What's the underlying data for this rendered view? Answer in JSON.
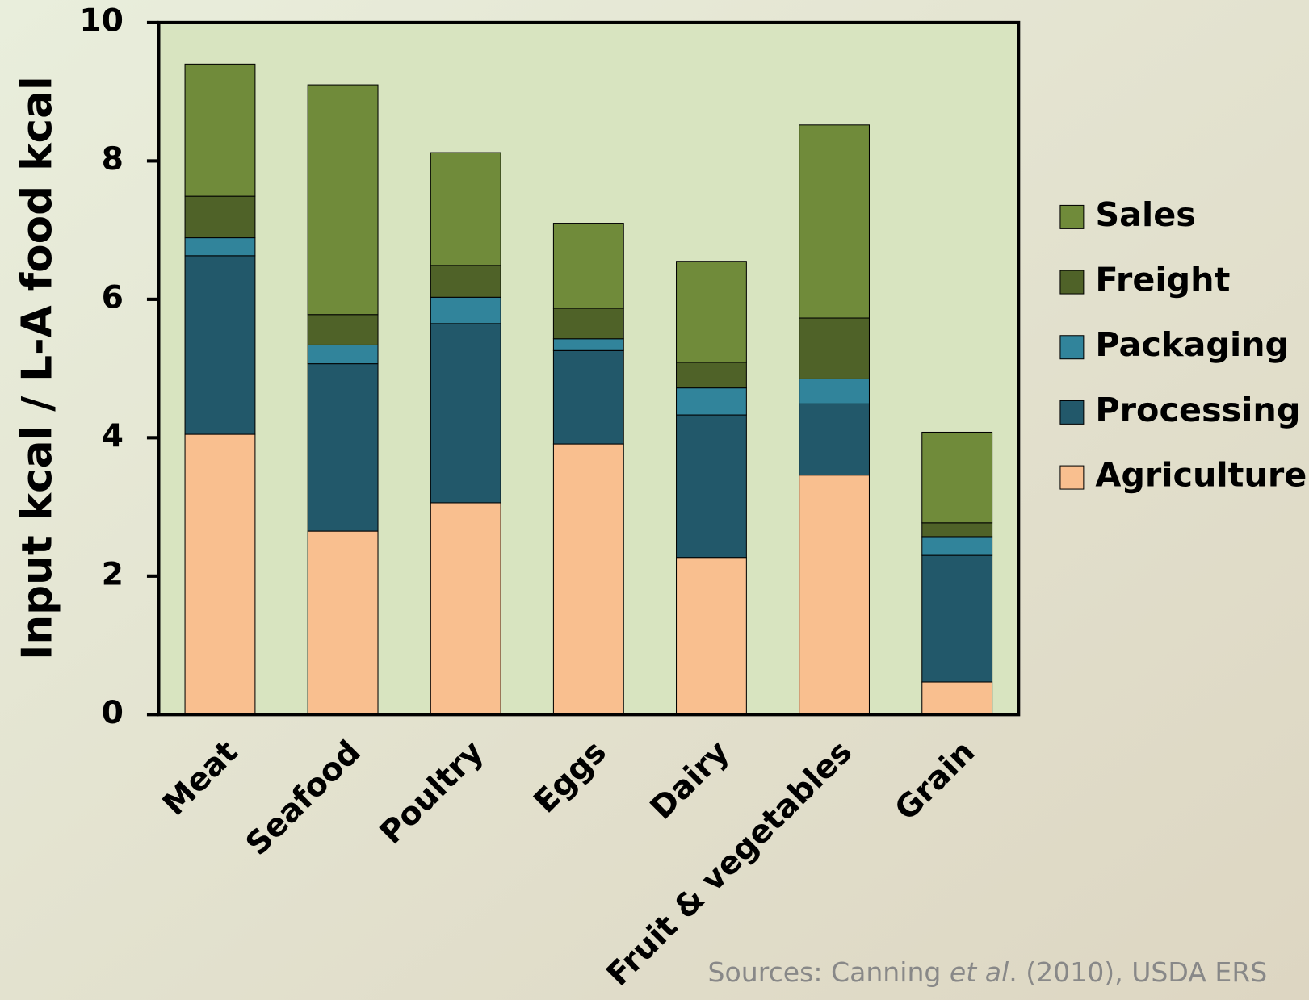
{
  "chart_data": {
    "type": "stacked_bar",
    "y_label": "Input kcal / L-A food kcal",
    "categories": [
      "Meat",
      "Seafood",
      "Poultry",
      "Eggs",
      "Dairy",
      "Fruit & vegetables",
      "Grain"
    ],
    "series": [
      {
        "name": "Agriculture",
        "color": "#f9bf8f",
        "values": [
          4.05,
          2.65,
          3.06,
          3.91,
          2.27,
          3.46,
          0.47
        ]
      },
      {
        "name": "Processing",
        "color": "#22586a",
        "values": [
          2.58,
          2.42,
          2.59,
          1.35,
          2.06,
          1.03,
          1.83
        ]
      },
      {
        "name": "Packaging",
        "color": "#31849b",
        "values": [
          0.26,
          0.27,
          0.38,
          0.17,
          0.39,
          0.36,
          0.27
        ]
      },
      {
        "name": "Freight",
        "color": "#4f6228",
        "values": [
          0.6,
          0.44,
          0.46,
          0.44,
          0.37,
          0.88,
          0.2
        ]
      },
      {
        "name": "Sales",
        "color": "#708b3a",
        "values": [
          1.91,
          3.32,
          1.63,
          1.23,
          1.46,
          2.79,
          1.31
        ]
      }
    ],
    "ylim": [
      0,
      10
    ],
    "yticks": [
      0,
      2,
      4,
      6,
      8,
      10
    ],
    "legend": "right",
    "source": [
      "Sources: Canning ",
      "et al",
      ". (2010), USDA ERS"
    ]
  }
}
